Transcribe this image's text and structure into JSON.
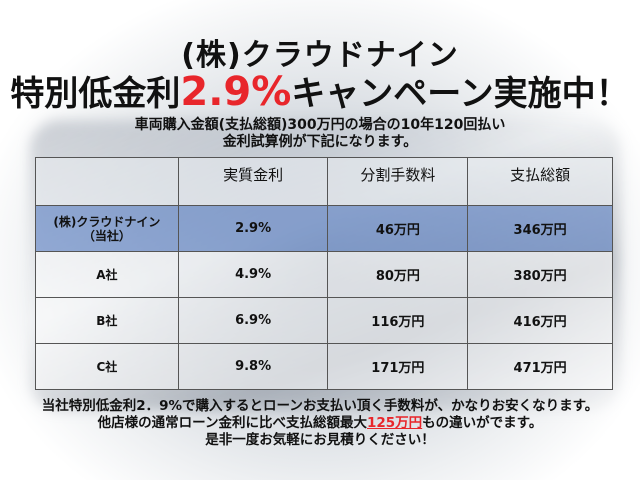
{
  "title_company": "(株)クラウドナイン",
  "title_prefix": "特別低金利",
  "title_rate": "2.9%",
  "title_suffix": "キャンペーン実施中！",
  "subtitle_line1": "車両購入金額(支払総額)300万円の場合の10年120回払い",
  "subtitle_line2": "金利試算例が下記になります。",
  "table": {
    "headers": [
      "",
      "実質金利",
      "分割手数料",
      "支払総額"
    ],
    "rows": [
      {
        "name": "(株)クラウドナイン",
        "name2": "（当社）",
        "rate": "2.9%",
        "fee": "46万円",
        "total": "346万円",
        "highlight": true
      },
      {
        "name": "A社",
        "name2": "",
        "rate": "4.9%",
        "fee": "80万円",
        "total": "380万円"
      },
      {
        "name": "B社",
        "name2": "",
        "rate": "6.9%",
        "fee": "116万円",
        "total": "416万円"
      },
      {
        "name": "C社",
        "name2": "",
        "rate": "9.8%",
        "fee": "171万円",
        "total": "471万円"
      }
    ]
  },
  "footer": {
    "line1": "当社特別低金利2．9%で購入するとローンお支払い頂く手数料が、かなりお安くなります。",
    "line2_pre": "他店様の通常ローン金利に比べ支払総額最大",
    "line2_highlight": "125万円",
    "line2_post": "もの違いがでます。",
    "line3": "是非一度お気軽にお見積りください！"
  },
  "colors": {
    "accent_red": "#e8262b",
    "highlight_row": "#5078c3"
  }
}
